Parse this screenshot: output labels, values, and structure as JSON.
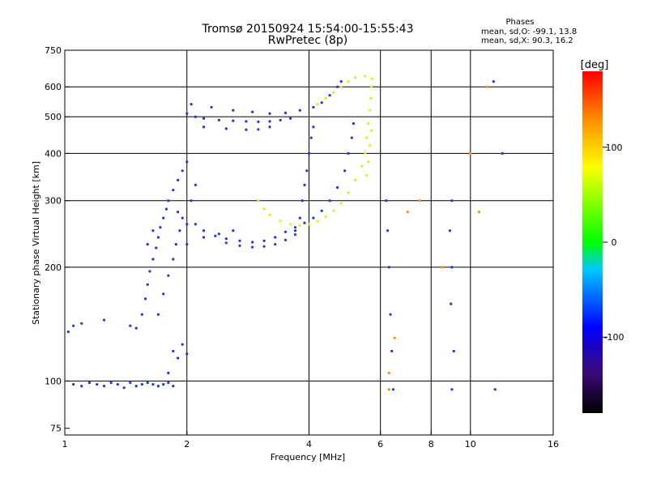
{
  "chart_data": {
    "type": "scatter",
    "title": "Tromsø 20150924 15:54:00-15:55:43",
    "subtitle": "RwPretec (8p)",
    "xlabel": "Frequency [MHz]",
    "ylabel": "Stationary phase Virtual Height [km]",
    "x_scale": "log",
    "y_scale": "log",
    "xlim": [
      1,
      16
    ],
    "ylim": [
      72,
      750
    ],
    "x_ticks": [
      1,
      2,
      4,
      6,
      8,
      10,
      16
    ],
    "y_ticks": [
      75,
      100,
      200,
      300,
      400,
      500,
      600,
      750
    ],
    "x_gridlines": [
      2,
      4,
      6,
      8,
      10
    ],
    "y_gridlines": [
      100,
      200,
      300,
      400,
      500,
      600
    ],
    "grid": true,
    "legend": {
      "title": "Phases",
      "line1": "mean, sd,O: -99.1, 13.8",
      "line2": "mean, sd,X:  90.3, 16.2"
    },
    "colorbar": {
      "label": "[deg]",
      "ticks": [
        100,
        0,
        -100
      ],
      "range": [
        -180,
        180
      ],
      "colormap": [
        "#000000",
        "#3c0a78",
        "#0000ff",
        "#00c8ff",
        "#00ff00",
        "#ffff00",
        "#ff8c00",
        "#ff0000"
      ]
    },
    "colors": {
      "blue": "#1e32e6",
      "yellow": "#e8e820",
      "purple": "#5a2ab4"
    },
    "series": [
      {
        "color": "#1e32e6",
        "points": [
          [
            1.05,
            98
          ],
          [
            1.1,
            97
          ],
          [
            1.15,
            99
          ],
          [
            1.2,
            98
          ],
          [
            1.25,
            97
          ],
          [
            1.3,
            99
          ],
          [
            1.35,
            98
          ],
          [
            1.4,
            96
          ],
          [
            1.45,
            99
          ],
          [
            1.5,
            97
          ],
          [
            1.55,
            98
          ],
          [
            1.6,
            99
          ],
          [
            1.65,
            98
          ],
          [
            1.7,
            97
          ],
          [
            1.75,
            98
          ],
          [
            1.8,
            99
          ],
          [
            1.85,
            97
          ],
          [
            1.02,
            135
          ],
          [
            1.05,
            140
          ],
          [
            1.1,
            142
          ],
          [
            1.25,
            145
          ],
          [
            1.45,
            140
          ],
          [
            1.5,
            138
          ]
        ]
      },
      {
        "color": "#1e32e6",
        "points": [
          [
            1.55,
            150
          ],
          [
            1.58,
            165
          ],
          [
            1.6,
            180
          ],
          [
            1.62,
            195
          ],
          [
            1.65,
            210
          ],
          [
            1.68,
            225
          ],
          [
            1.7,
            240
          ],
          [
            1.72,
            255
          ],
          [
            1.75,
            270
          ],
          [
            1.78,
            285
          ],
          [
            1.8,
            300
          ],
          [
            1.85,
            320
          ],
          [
            1.9,
            340
          ],
          [
            1.95,
            360
          ],
          [
            2.0,
            380
          ],
          [
            1.7,
            150
          ],
          [
            1.75,
            170
          ],
          [
            1.8,
            190
          ],
          [
            1.85,
            210
          ],
          [
            1.88,
            230
          ],
          [
            1.92,
            250
          ],
          [
            1.95,
            270
          ],
          [
            2.05,
            300
          ],
          [
            2.1,
            330
          ],
          [
            2.0,
            260
          ],
          [
            1.9,
            280
          ],
          [
            1.6,
            230
          ],
          [
            1.65,
            250
          ],
          [
            1.85,
            120
          ],
          [
            1.9,
            115
          ],
          [
            1.95,
            125
          ],
          [
            2.0,
            118
          ],
          [
            1.8,
            105
          ]
        ]
      },
      {
        "color": "#1e32e6",
        "points": [
          [
            2.0,
            510
          ],
          [
            2.1,
            500
          ],
          [
            2.2,
            495
          ],
          [
            2.4,
            490
          ],
          [
            2.6,
            488
          ],
          [
            2.8,
            486
          ],
          [
            3.0,
            485
          ],
          [
            3.2,
            486
          ],
          [
            3.4,
            490
          ],
          [
            3.6,
            495
          ],
          [
            2.2,
            470
          ],
          [
            2.5,
            465
          ],
          [
            2.8,
            462
          ],
          [
            3.0,
            463
          ],
          [
            3.2,
            470
          ],
          [
            2.05,
            540
          ],
          [
            2.3,
            530
          ],
          [
            2.6,
            520
          ],
          [
            2.9,
            515
          ],
          [
            3.2,
            510
          ],
          [
            3.5,
            512
          ],
          [
            3.8,
            520
          ],
          [
            4.1,
            530
          ],
          [
            4.3,
            545
          ],
          [
            4.5,
            570
          ],
          [
            4.7,
            600
          ],
          [
            4.8,
            620
          ]
        ]
      },
      {
        "color": "#1e32e6",
        "points": [
          [
            2.1,
            260
          ],
          [
            2.2,
            250
          ],
          [
            2.35,
            242
          ],
          [
            2.5,
            238
          ],
          [
            2.7,
            235
          ],
          [
            2.9,
            233
          ],
          [
            3.1,
            235
          ],
          [
            3.3,
            240
          ],
          [
            3.5,
            248
          ],
          [
            3.7,
            255
          ],
          [
            3.9,
            262
          ],
          [
            4.1,
            270
          ],
          [
            4.3,
            282
          ],
          [
            4.5,
            300
          ],
          [
            4.7,
            325
          ],
          [
            4.9,
            360
          ],
          [
            5.0,
            400
          ],
          [
            5.1,
            440
          ],
          [
            5.15,
            480
          ]
        ]
      },
      {
        "color": "#1e32e6",
        "points": [
          [
            3.7,
            250
          ],
          [
            3.8,
            270
          ],
          [
            3.85,
            300
          ],
          [
            3.9,
            330
          ],
          [
            3.95,
            360
          ],
          [
            4.0,
            400
          ],
          [
            4.05,
            440
          ],
          [
            4.1,
            470
          ],
          [
            2.0,
            230
          ],
          [
            2.2,
            240
          ],
          [
            2.4,
            245
          ],
          [
            2.6,
            250
          ]
        ]
      },
      {
        "color": "#e8e820",
        "points": [
          [
            3.0,
            300
          ],
          [
            3.1,
            285
          ],
          [
            3.2,
            275
          ],
          [
            3.4,
            265
          ],
          [
            3.6,
            260
          ],
          [
            3.8,
            258
          ],
          [
            4.0,
            260
          ],
          [
            4.2,
            265
          ],
          [
            4.4,
            272
          ],
          [
            4.6,
            282
          ],
          [
            4.8,
            295
          ],
          [
            5.0,
            315
          ],
          [
            5.2,
            340
          ],
          [
            5.4,
            370
          ],
          [
            5.5,
            400
          ],
          [
            5.55,
            440
          ],
          [
            5.6,
            480
          ],
          [
            5.65,
            520
          ],
          [
            5.68,
            560
          ],
          [
            5.7,
            600
          ],
          [
            5.72,
            630
          ],
          [
            5.55,
            350
          ],
          [
            5.6,
            380
          ],
          [
            5.65,
            420
          ],
          [
            5.7,
            460
          ]
        ]
      },
      {
        "color": "#e8e820",
        "points": [
          [
            4.2,
            540
          ],
          [
            4.4,
            560
          ],
          [
            4.6,
            580
          ],
          [
            4.8,
            600
          ],
          [
            5.0,
            620
          ],
          [
            5.2,
            635
          ],
          [
            5.5,
            640
          ]
        ]
      },
      {
        "color": "#5a2ab4",
        "points": [
          [
            2.5,
            232
          ],
          [
            2.7,
            228
          ],
          [
            2.9,
            226
          ],
          [
            3.1,
            227
          ],
          [
            3.3,
            230
          ],
          [
            3.5,
            236
          ],
          [
            3.7,
            244
          ]
        ]
      },
      {
        "color": "#1e32e6",
        "points": [
          [
            6.2,
            300
          ],
          [
            6.25,
            250
          ],
          [
            6.3,
            200
          ],
          [
            6.35,
            150
          ],
          [
            6.4,
            120
          ],
          [
            6.45,
            95
          ],
          [
            9.0,
            300
          ],
          [
            8.9,
            250
          ],
          [
            9.0,
            200
          ],
          [
            8.95,
            160
          ],
          [
            9.1,
            120
          ],
          [
            9.0,
            95
          ],
          [
            11.5,
            95
          ],
          [
            11.4,
            620
          ],
          [
            12.0,
            400
          ]
        ]
      },
      {
        "color": "#ff8c00",
        "points": [
          [
            6.5,
            130
          ],
          [
            7.0,
            280
          ],
          [
            7.5,
            300
          ],
          [
            8.5,
            200
          ],
          [
            10.0,
            400
          ],
          [
            10.5,
            280
          ],
          [
            11.0,
            600
          ],
          [
            6.3,
            105
          ],
          [
            6.3,
            95
          ]
        ]
      }
    ]
  }
}
